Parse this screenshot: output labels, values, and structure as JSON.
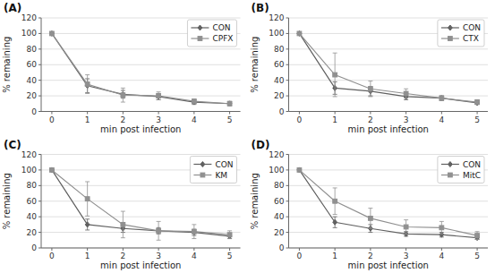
{
  "chart_data": [
    {
      "type": "line",
      "title": "(A)",
      "xlabel": "min post infection",
      "ylabel": "% remaining",
      "x": [
        0,
        1,
        2,
        3,
        4,
        5
      ],
      "xlim": [
        -0.3,
        5.3
      ],
      "xticks": [
        0,
        1,
        2,
        3,
        4,
        5
      ],
      "ylim": [
        0,
        120
      ],
      "yticks": [
        0,
        20,
        40,
        60,
        80,
        100,
        120
      ],
      "grid": "y",
      "legend": "upper right",
      "series": [
        {
          "name": "CON",
          "color": "#606060",
          "marker": "diamond",
          "line_style": "solid",
          "values": [
            100,
            33,
            22,
            19,
            12,
            10
          ],
          "yerr": [
            0,
            9,
            5,
            4,
            3,
            2
          ]
        },
        {
          "name": "CPFX",
          "color": "#909090",
          "marker": "square",
          "line_style": "solid",
          "values": [
            100,
            35,
            21,
            20,
            13,
            10
          ],
          "yerr": [
            0,
            12,
            9,
            5,
            3,
            3
          ]
        }
      ]
    },
    {
      "type": "line",
      "title": "(B)",
      "xlabel": "min post infection",
      "ylabel": "% remaining",
      "x": [
        0,
        1,
        2,
        3,
        4,
        5
      ],
      "xlim": [
        -0.3,
        5.3
      ],
      "xticks": [
        0,
        1,
        2,
        3,
        4,
        5
      ],
      "ylim": [
        0,
        120
      ],
      "yticks": [
        0,
        20,
        40,
        60,
        80,
        100,
        120
      ],
      "grid": "y",
      "legend": "upper right",
      "series": [
        {
          "name": "CON",
          "color": "#606060",
          "marker": "diamond",
          "line_style": "solid",
          "values": [
            100,
            30,
            26,
            19,
            17,
            11
          ],
          "yerr": [
            0,
            8,
            6,
            4,
            3,
            2
          ]
        },
        {
          "name": "CTX",
          "color": "#909090",
          "marker": "square",
          "line_style": "solid",
          "values": [
            100,
            47,
            29,
            23,
            17,
            12
          ],
          "yerr": [
            0,
            28,
            10,
            6,
            3,
            3
          ]
        }
      ]
    },
    {
      "type": "line",
      "title": "(C)",
      "xlabel": "min post infection",
      "ylabel": "% remaining",
      "x": [
        0,
        1,
        2,
        3,
        4,
        5
      ],
      "xlim": [
        -0.3,
        5.3
      ],
      "xticks": [
        0,
        1,
        2,
        3,
        4,
        5
      ],
      "ylim": [
        0,
        120
      ],
      "yticks": [
        0,
        20,
        40,
        60,
        80,
        100,
        120
      ],
      "grid": "y",
      "legend": "upper right",
      "series": [
        {
          "name": "CON",
          "color": "#606060",
          "marker": "diamond",
          "line_style": "solid",
          "values": [
            100,
            30,
            25,
            22,
            20,
            15
          ],
          "yerr": [
            0,
            7,
            5,
            4,
            4,
            3
          ]
        },
        {
          "name": "KM",
          "color": "#909090",
          "marker": "square",
          "line_style": "solid",
          "values": [
            100,
            63,
            30,
            22,
            21,
            17
          ],
          "yerr": [
            0,
            22,
            17,
            12,
            9,
            5
          ]
        }
      ]
    },
    {
      "type": "line",
      "title": "(D)",
      "xlabel": "min post infection",
      "ylabel": "% remaining",
      "x": [
        0,
        1,
        2,
        3,
        4,
        5
      ],
      "xlim": [
        -0.3,
        5.3
      ],
      "xticks": [
        0,
        1,
        2,
        3,
        4,
        5
      ],
      "ylim": [
        0,
        120
      ],
      "yticks": [
        0,
        20,
        40,
        60,
        80,
        100,
        120
      ],
      "grid": "y",
      "legend": "upper right",
      "series": [
        {
          "name": "CON",
          "color": "#606060",
          "marker": "diamond",
          "line_style": "solid",
          "values": [
            100,
            33,
            25,
            18,
            17,
            13
          ],
          "yerr": [
            0,
            7,
            5,
            3,
            3,
            2
          ]
        },
        {
          "name": "MitC",
          "color": "#909090",
          "marker": "square",
          "line_style": "solid",
          "values": [
            100,
            60,
            38,
            27,
            26,
            16
          ],
          "yerr": [
            0,
            17,
            13,
            9,
            8,
            5
          ]
        }
      ]
    }
  ]
}
